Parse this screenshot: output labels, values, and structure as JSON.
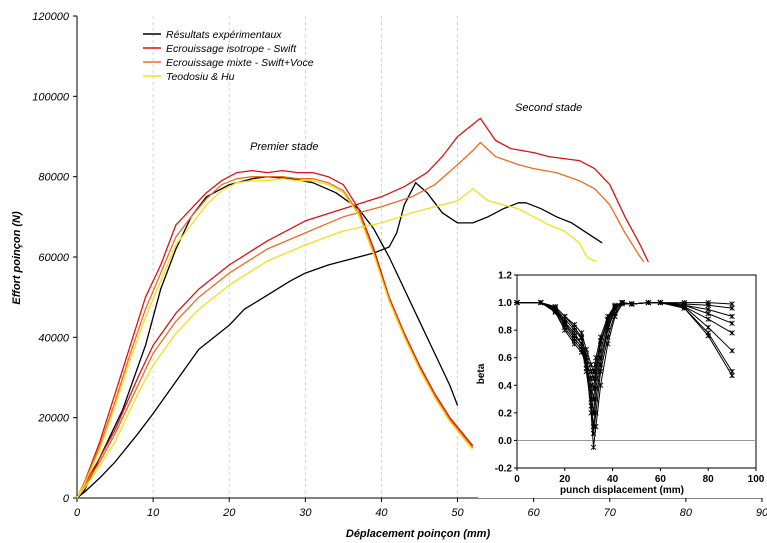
{
  "chart_data": [
    {
      "type": "line",
      "xlabel": "Déplacement poinçon (mm)",
      "ylabel": "Effort poinçon (N)",
      "xlim": [
        0,
        90
      ],
      "ylim": [
        0,
        120000
      ],
      "xticks": [
        0,
        10,
        20,
        30,
        40,
        50,
        60,
        70,
        80,
        90
      ],
      "yticks": [
        0,
        20000,
        40000,
        60000,
        80000,
        100000,
        120000
      ],
      "vertical_grid_dashed": [
        10,
        20,
        30,
        40,
        50
      ],
      "legend_position": "top-left",
      "annotations": [
        {
          "text": "Premier stade",
          "x": 28,
          "y": 82000
        },
        {
          "text": "Second stade",
          "x": 58,
          "y": 97000
        }
      ],
      "series": [
        {
          "name": "Résultats expérimentaux",
          "color": "#000000",
          "x": [
            0,
            1,
            3,
            5,
            8,
            10,
            13,
            16,
            20,
            22,
            25,
            28,
            30,
            33,
            36,
            39,
            41,
            42,
            43,
            44.5,
            46,
            48,
            50,
            52,
            54,
            56,
            58,
            59,
            61,
            63,
            65,
            67,
            69
          ],
          "y": [
            0,
            1500,
            5000,
            9000,
            16000,
            21000,
            29000,
            37000,
            43000,
            47000,
            50500,
            54000,
            56000,
            58000,
            59500,
            61000,
            62500,
            66000,
            73000,
            78500,
            76000,
            71000,
            68500,
            68500,
            70000,
            72000,
            73500,
            73500,
            72000,
            70000,
            68500,
            66000,
            63500
          ]
        },
        {
          "name": "Résultats expérimentaux",
          "color": "#000000",
          "x": [
            0,
            1,
            3,
            6,
            9,
            11,
            13,
            15,
            17,
            20,
            23,
            25,
            28,
            31,
            34,
            37,
            39,
            41,
            43,
            45,
            47,
            49,
            50
          ],
          "y": [
            0,
            2000,
            10000,
            22000,
            38000,
            52000,
            62000,
            70000,
            75000,
            78000,
            79500,
            80000,
            79500,
            78500,
            76000,
            72000,
            67000,
            60000,
            52000,
            44000,
            36000,
            28000,
            23000
          ]
        },
        {
          "name": "Ecrouissage isotrope - Swift",
          "color": "#dd1111",
          "x": [
            0,
            1,
            3,
            5,
            8,
            10,
            13,
            16,
            20,
            25,
            30,
            35,
            40,
            43,
            46,
            48,
            50,
            52,
            53,
            55,
            57,
            60,
            62,
            64,
            66,
            68,
            70,
            72,
            74,
            76
          ],
          "y": [
            0,
            3500,
            10000,
            17000,
            30000,
            38000,
            46000,
            52000,
            58000,
            64000,
            69000,
            72000,
            75000,
            77500,
            81000,
            85000,
            90000,
            93000,
            94500,
            89000,
            87000,
            86000,
            85000,
            84500,
            84000,
            82000,
            78000,
            70000,
            63000,
            55000
          ]
        },
        {
          "name": "Ecrouissage isotrope - Swift",
          "color": "#dd1111",
          "x": [
            0,
            1,
            3,
            5,
            7,
            9,
            11,
            13,
            15,
            17,
            19,
            21,
            23,
            25,
            27,
            29,
            31,
            33,
            35,
            37,
            39,
            41,
            43,
            45,
            47,
            49,
            52
          ],
          "y": [
            0,
            4000,
            14000,
            26000,
            38000,
            50000,
            58000,
            68000,
            72000,
            76000,
            79000,
            81000,
            81500,
            81000,
            81500,
            81000,
            81000,
            80000,
            78000,
            72000,
            62000,
            50000,
            41000,
            33000,
            26000,
            20000,
            13000
          ]
        },
        {
          "name": "Ecrouissage mixte - Swift+Voce",
          "color": "#f06a1e",
          "x": [
            0,
            1,
            3,
            5,
            8,
            10,
            13,
            16,
            20,
            25,
            30,
            35,
            40,
            44,
            47,
            50,
            52,
            53,
            55,
            58,
            60,
            63,
            66,
            68,
            70,
            72,
            74,
            76,
            78
          ],
          "y": [
            0,
            3000,
            9000,
            16000,
            28000,
            36000,
            44000,
            50000,
            56000,
            62000,
            66000,
            70000,
            72500,
            75000,
            78000,
            83000,
            86500,
            88500,
            85000,
            83000,
            82000,
            81000,
            79000,
            77000,
            73000,
            66000,
            60000,
            55000,
            49000
          ]
        },
        {
          "name": "Ecrouissage mixte - Swift+Voce",
          "color": "#f06a1e",
          "x": [
            0,
            1,
            3,
            5,
            7,
            9,
            11,
            13,
            15,
            17,
            19,
            21,
            23,
            25,
            27,
            29,
            31,
            33,
            35,
            37,
            39,
            41,
            43,
            45,
            47,
            49,
            52
          ],
          "y": [
            0,
            3800,
            13000,
            24000,
            36000,
            47000,
            56000,
            65000,
            70000,
            74500,
            78000,
            79500,
            80000,
            80000,
            80000,
            79500,
            79500,
            78500,
            76500,
            71000,
            61000,
            49500,
            40500,
            32500,
            25500,
            19500,
            12500
          ]
        },
        {
          "name": "Teodosiu & Hu",
          "color": "#f2e01a",
          "x": [
            0,
            1,
            3,
            5,
            8,
            10,
            13,
            16,
            20,
            25,
            30,
            35,
            40,
            44,
            48,
            50,
            52,
            54,
            56,
            58,
            60,
            62,
            64,
            66,
            67,
            68,
            69
          ],
          "y": [
            0,
            2500,
            8000,
            14000,
            26000,
            33000,
            41000,
            47000,
            53000,
            59000,
            63000,
            66500,
            68500,
            71000,
            73000,
            74000,
            77000,
            74000,
            73000,
            72000,
            70000,
            68000,
            66500,
            63500,
            60000,
            59000,
            57500
          ]
        },
        {
          "name": "Teodosiu & Hu",
          "color": "#f2e01a",
          "x": [
            0,
            1,
            3,
            5,
            7,
            9,
            11,
            13,
            15,
            17,
            19,
            21,
            23,
            25,
            27,
            29,
            31,
            33,
            35,
            37,
            39,
            41,
            43,
            45,
            47,
            49,
            52
          ],
          "y": [
            0,
            3600,
            12000,
            23000,
            34500,
            45000,
            54000,
            63000,
            68000,
            73000,
            76500,
            78500,
            79000,
            79000,
            79500,
            79000,
            79000,
            78000,
            76000,
            70500,
            60500,
            49000,
            40000,
            32000,
            25000,
            19000,
            12000
          ]
        }
      ]
    },
    {
      "type": "line",
      "xlabel": "punch displacement (mm)",
      "ylabel": "beta",
      "xlim": [
        0,
        100
      ],
      "ylim": [
        -0.2,
        1.2
      ],
      "xticks": [
        0,
        20,
        40,
        60,
        80,
        100
      ],
      "yticks": [
        -0.2,
        0.0,
        0.2,
        0.4,
        0.6,
        0.8,
        1.0,
        1.2
      ],
      "xtick_labels": [
        "0",
        "20",
        "40",
        "60",
        "80",
        "100"
      ],
      "ytick_labels": [
        "-0.2",
        "0.0",
        "0.2",
        "0.4",
        "0.6",
        "0.8",
        "1.0",
        "1.2"
      ],
      "marker": "asterisk",
      "color": "#000000",
      "series": [
        {
          "x": [
            0,
            10,
            16,
            20,
            24,
            27,
            29,
            31,
            32,
            33,
            35,
            38,
            41,
            44,
            48,
            55,
            60,
            70,
            80,
            90
          ],
          "y": [
            1.0,
            1.0,
            0.97,
            0.9,
            0.82,
            0.75,
            0.6,
            0.3,
            0.05,
            0.2,
            0.5,
            0.75,
            0.92,
            1.0,
            0.99,
            1.0,
            1.0,
            1.0,
            1.0,
            0.99
          ]
        },
        {
          "x": [
            0,
            10,
            16,
            20,
            24,
            27,
            29,
            31,
            32,
            33,
            35,
            38,
            41,
            44,
            48,
            55,
            60,
            70,
            80,
            90
          ],
          "y": [
            1.0,
            1.0,
            0.96,
            0.86,
            0.78,
            0.7,
            0.55,
            0.2,
            -0.05,
            0.1,
            0.4,
            0.7,
            0.9,
            0.99,
            0.99,
            1.0,
            1.0,
            0.99,
            0.98,
            0.96
          ]
        },
        {
          "x": [
            0,
            10,
            16,
            20,
            24,
            27,
            29,
            31,
            32,
            33,
            35,
            38,
            41,
            44,
            48,
            55,
            60,
            70,
            80,
            90
          ],
          "y": [
            1.0,
            1.0,
            0.95,
            0.84,
            0.74,
            0.68,
            0.5,
            0.25,
            0.1,
            0.3,
            0.55,
            0.8,
            0.95,
            1.0,
            0.99,
            1.0,
            1.0,
            0.98,
            0.95,
            0.9
          ]
        },
        {
          "x": [
            0,
            10,
            16,
            20,
            24,
            27,
            29,
            31,
            32,
            33,
            35,
            38,
            41,
            44,
            48,
            55,
            60,
            70,
            80,
            90
          ],
          "y": [
            1.0,
            1.0,
            0.94,
            0.82,
            0.72,
            0.66,
            0.52,
            0.35,
            0.2,
            0.38,
            0.6,
            0.82,
            0.96,
            1.0,
            0.99,
            1.0,
            1.0,
            0.98,
            0.92,
            0.85
          ]
        },
        {
          "x": [
            0,
            10,
            16,
            20,
            24,
            27,
            29,
            31,
            32,
            33,
            35,
            38,
            41,
            44,
            48,
            55,
            60,
            70,
            80,
            90
          ],
          "y": [
            1.0,
            1.0,
            0.93,
            0.8,
            0.7,
            0.64,
            0.55,
            0.4,
            0.3,
            0.45,
            0.65,
            0.85,
            0.97,
            1.0,
            0.99,
            1.0,
            1.0,
            0.97,
            0.88,
            0.78
          ]
        },
        {
          "x": [
            0,
            10,
            16,
            20,
            24,
            27,
            29,
            31,
            32,
            33,
            35,
            38,
            41,
            44,
            48,
            55,
            60,
            70,
            80,
            90
          ],
          "y": [
            1.0,
            1.0,
            0.95,
            0.85,
            0.76,
            0.7,
            0.58,
            0.45,
            0.38,
            0.5,
            0.7,
            0.87,
            0.97,
            1.0,
            0.99,
            1.0,
            1.0,
            0.97,
            0.82,
            0.65
          ]
        },
        {
          "x": [
            0,
            10,
            16,
            20,
            24,
            27,
            29,
            31,
            32,
            33,
            35,
            38,
            41,
            44,
            48,
            55,
            60,
            70,
            80,
            90
          ],
          "y": [
            1.0,
            1.0,
            0.96,
            0.88,
            0.8,
            0.74,
            0.62,
            0.5,
            0.45,
            0.55,
            0.72,
            0.88,
            0.98,
            1.0,
            0.99,
            1.0,
            1.0,
            0.96,
            0.78,
            0.5
          ]
        },
        {
          "x": [
            0,
            10,
            16,
            20,
            24,
            27,
            29,
            31,
            32,
            33,
            35,
            38,
            41,
            44,
            48,
            55,
            60,
            70,
            80,
            90
          ],
          "y": [
            1.0,
            1.0,
            0.97,
            0.9,
            0.84,
            0.78,
            0.66,
            0.55,
            0.5,
            0.6,
            0.75,
            0.9,
            0.98,
            1.0,
            0.99,
            1.0,
            1.0,
            0.96,
            0.76,
            0.47
          ]
        }
      ]
    }
  ]
}
